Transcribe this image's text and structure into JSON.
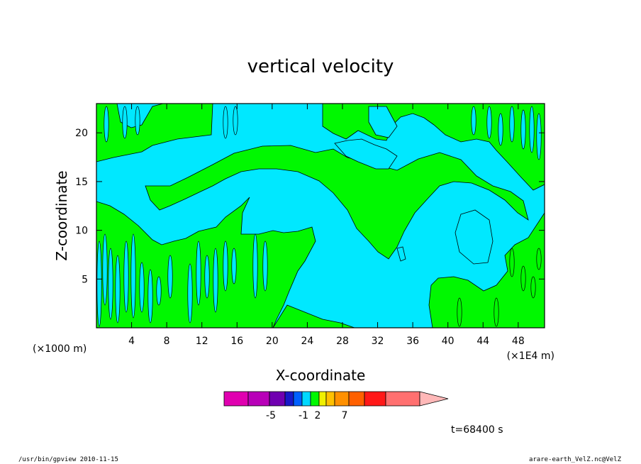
{
  "chart_data": {
    "type": "heatmap",
    "title": "vertical velocity",
    "xlabel": "X-coordinate",
    "ylabel": "Z-coordinate",
    "x_unit_left": "(×1000 m)",
    "x_unit_right": "(×1E4 m)",
    "xlim": [
      0,
      51
    ],
    "ylim": [
      0,
      23
    ],
    "x_ticks": [
      "4",
      "8",
      "12",
      "16",
      "20",
      "24",
      "28",
      "32",
      "36",
      "40",
      "44",
      "48"
    ],
    "x_tick_values": [
      4,
      8,
      12,
      16,
      20,
      24,
      28,
      32,
      36,
      40,
      44,
      48
    ],
    "y_ticks": [
      "5",
      "10",
      "15",
      "20"
    ],
    "y_tick_values": [
      5,
      10,
      15,
      20
    ],
    "fill_colors": {
      "negative": "#00e8ff",
      "positive": "#00f800"
    },
    "colorbar": {
      "colors": [
        "#e000b0",
        "#b800b8",
        "#7000b0",
        "#1818c8",
        "#0060ff",
        "#00d8ff",
        "#00f800",
        "#f0f000",
        "#ffc000",
        "#ff9000",
        "#ff6000",
        "#ff1818",
        "#ff7070",
        "#ffb8b8"
      ],
      "tick_labels": [
        "-5",
        "-1",
        "2",
        "7"
      ],
      "extend": "max"
    },
    "time_label": "t=68400 s"
  },
  "footer": {
    "left": "/usr/bin/gpview  2010-11-15",
    "right": "arare-earth_VelZ.nc@VelZ"
  }
}
